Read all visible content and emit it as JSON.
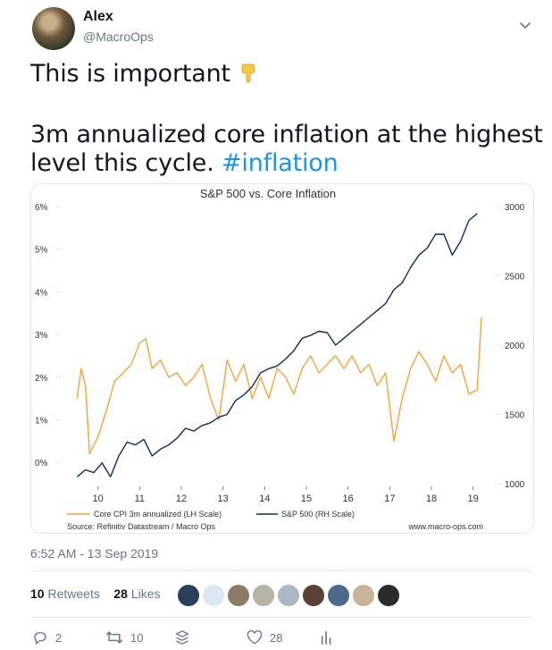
{
  "author": {
    "name": "Alex",
    "handle": "@MacroOps"
  },
  "tweet": {
    "line1": "This is important",
    "line2": "3m annualized core inflation at the highest",
    "line3": "level this cycle.",
    "hashtag": "#inflation"
  },
  "timestamp": "6:52 AM - 13 Sep 2019",
  "stats": {
    "retweets_count": "10",
    "retweets_label": "Retweets",
    "likes_count": "28",
    "likes_label": "Likes"
  },
  "actions": {
    "replies": "2",
    "retweets": "10",
    "likes": "28"
  },
  "colors": {
    "accent": "#1b95e0",
    "cpi": "#f2a43a",
    "sp500": "#0e2d52"
  },
  "chart_data": {
    "type": "line",
    "title": "S&P 500 vs. Core Inflation",
    "x_ticks": [
      "10",
      "11",
      "12",
      "13",
      "14",
      "15",
      "16",
      "17",
      "18",
      "19"
    ],
    "left_axis": {
      "ticks": [
        "6%",
        "5%",
        "4%",
        "3%",
        "2%",
        "1%",
        "0%"
      ],
      "ylim": [
        -0.5,
        6
      ]
    },
    "right_axis": {
      "ticks": [
        "3000",
        "2500",
        "2000",
        "1500",
        "1000"
      ],
      "ylim": [
        1000,
        3000
      ]
    },
    "series": [
      {
        "name": "Core CPI 3m annualized (LH Scale)",
        "axis": "left",
        "x": [
          9.5,
          9.6,
          9.7,
          9.8,
          10.0,
          10.2,
          10.4,
          10.6,
          10.8,
          11.0,
          11.15,
          11.3,
          11.5,
          11.7,
          11.9,
          12.1,
          12.3,
          12.5,
          12.7,
          12.9,
          13.1,
          13.3,
          13.5,
          13.7,
          13.9,
          14.1,
          14.3,
          14.5,
          14.7,
          14.9,
          15.1,
          15.3,
          15.5,
          15.7,
          15.9,
          16.1,
          16.3,
          16.5,
          16.7,
          16.9,
          17.1,
          17.3,
          17.5,
          17.7,
          17.9,
          18.1,
          18.3,
          18.5,
          18.7,
          18.9,
          19.1,
          19.2
        ],
        "values": [
          1.5,
          2.2,
          1.8,
          0.2,
          0.6,
          1.2,
          1.9,
          2.1,
          2.3,
          2.8,
          2.9,
          2.2,
          2.4,
          2.0,
          2.1,
          1.8,
          2.0,
          2.3,
          1.5,
          1.0,
          2.4,
          1.9,
          2.3,
          1.5,
          2.0,
          1.5,
          2.2,
          2.0,
          1.6,
          2.2,
          2.5,
          2.1,
          2.3,
          2.5,
          2.2,
          2.5,
          2.1,
          2.3,
          1.8,
          2.1,
          0.5,
          1.5,
          2.2,
          2.6,
          2.3,
          1.9,
          2.5,
          2.1,
          2.3,
          1.6,
          1.7,
          3.4
        ]
      },
      {
        "name": "S&P 500 (RH Scale)",
        "axis": "right",
        "x": [
          9.5,
          9.7,
          9.9,
          10.1,
          10.3,
          10.5,
          10.7,
          10.9,
          11.1,
          11.3,
          11.5,
          11.7,
          11.9,
          12.1,
          12.3,
          12.5,
          12.7,
          12.9,
          13.1,
          13.3,
          13.5,
          13.7,
          13.9,
          14.1,
          14.3,
          14.5,
          14.7,
          14.9,
          15.1,
          15.3,
          15.5,
          15.7,
          15.9,
          16.1,
          16.3,
          16.5,
          16.7,
          16.9,
          17.1,
          17.3,
          17.5,
          17.7,
          17.9,
          18.1,
          18.3,
          18.5,
          18.7,
          18.9,
          19.1
        ],
        "values": [
          1050,
          1100,
          1080,
          1150,
          1050,
          1200,
          1300,
          1280,
          1320,
          1200,
          1250,
          1280,
          1330,
          1400,
          1380,
          1420,
          1440,
          1480,
          1500,
          1600,
          1640,
          1700,
          1800,
          1830,
          1850,
          1900,
          1960,
          2050,
          2070,
          2100,
          2090,
          2000,
          2050,
          2100,
          2150,
          2200,
          2250,
          2300,
          2400,
          2450,
          2560,
          2650,
          2700,
          2800,
          2800,
          2650,
          2750,
          2900,
          2950
        ]
      }
    ],
    "legend": [
      "Core CPI 3m annualized (LH Scale)",
      "S&P 500 (RH Scale)"
    ],
    "source": "Source: Refinitiv Datastream / Macro Ops",
    "watermark": "www.macro-ops.com"
  }
}
